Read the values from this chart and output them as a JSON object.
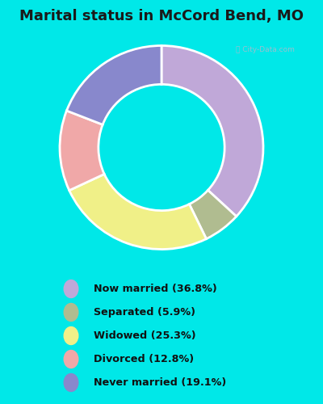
{
  "title": "Marital status in McCord Bend, MO",
  "slices": [
    36.8,
    5.9,
    25.3,
    12.8,
    19.1
  ],
  "labels": [
    "Now married (36.8%)",
    "Separated (5.9%)",
    "Widowed (25.3%)",
    "Divorced (12.8%)",
    "Never married (19.1%)"
  ],
  "colors": [
    "#c0a8d8",
    "#b0bc90",
    "#f0f088",
    "#f0a8a8",
    "#8888cc"
  ],
  "bg_cyan": "#00e8e8",
  "bg_chart_color": "#d8ede0",
  "title_fontsize": 13,
  "donut_width": 0.38,
  "start_angle": 90
}
